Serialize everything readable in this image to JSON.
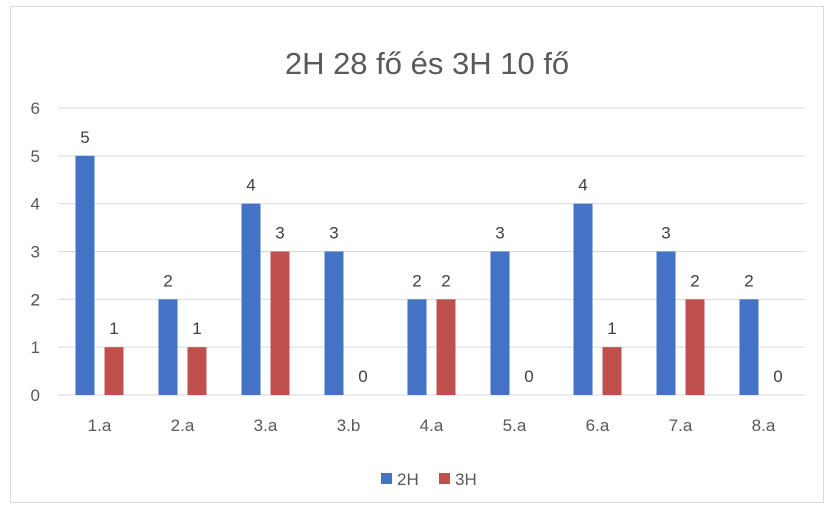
{
  "chart_data": {
    "type": "bar",
    "title": "2H 28 fő és 3H 10 fő",
    "xlabel": "",
    "ylabel": "",
    "categories": [
      "1.a",
      "2.a",
      "3.a",
      "3.b",
      "4.a",
      "5.a",
      "6.a",
      "7.a",
      "8.a"
    ],
    "series": [
      {
        "name": "2H",
        "values": [
          5,
          2,
          4,
          3,
          2,
          3,
          4,
          3,
          2
        ],
        "color": "#4472c4"
      },
      {
        "name": "3H",
        "values": [
          1,
          1,
          3,
          0,
          2,
          0,
          1,
          2,
          0
        ],
        "color": "#c0504d"
      }
    ],
    "ylim": [
      0,
      6
    ],
    "yticks": [
      "0",
      "1",
      "2",
      "2",
      "3",
      "4",
      "5",
      "6"
    ],
    "ytick_values": [
      0,
      1,
      2,
      2,
      3,
      4,
      5,
      6
    ],
    "grid": true,
    "legend": "bottom",
    "gridline_color": "#d9d9d9"
  }
}
